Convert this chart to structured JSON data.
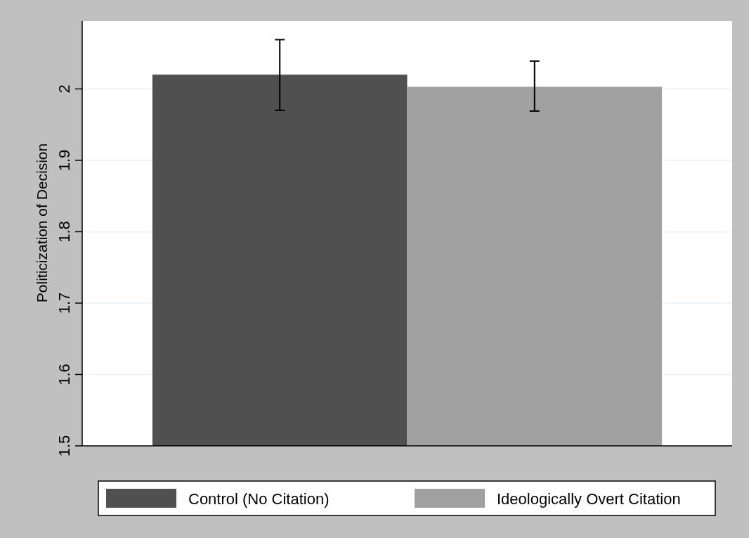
{
  "chart_data": {
    "type": "bar",
    "ylabel": "Politicization of Decision",
    "categories": [
      null
    ],
    "series": [
      {
        "name": "Control (No Citation)",
        "color": "#505050",
        "values": [
          2.02
        ],
        "errors": [
          [
            1.97,
            2.069
          ]
        ]
      },
      {
        "name": "Ideologically Overt Citation",
        "color": "#a0a0a0",
        "values": [
          2.003
        ],
        "errors": [
          [
            1.969,
            2.039
          ]
        ]
      }
    ],
    "ylim": [
      1.5,
      2.095
    ],
    "yticks": [
      1.5,
      1.6,
      1.7,
      1.8,
      1.9,
      2
    ],
    "grid": "y",
    "legend": "bottom"
  }
}
